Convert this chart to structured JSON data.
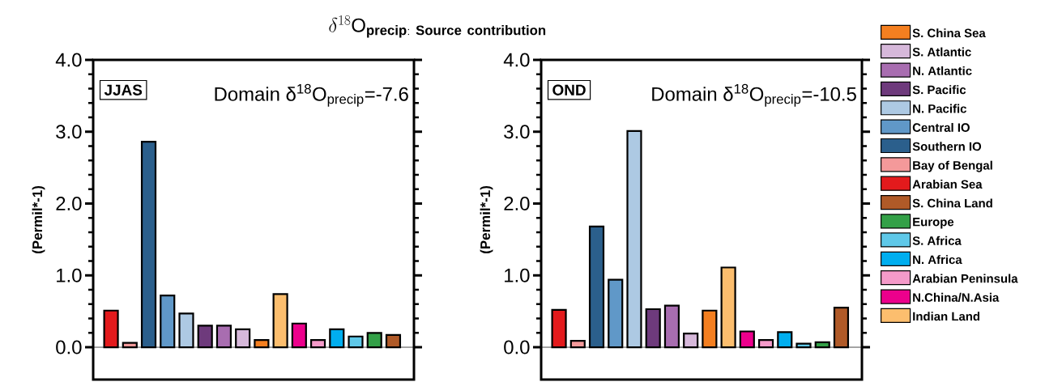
{
  "chart_data": [
    {
      "type": "bar",
      "title": "\\delta^{18}\\mathrm{O}_{\\mathbf{precip:\\ Source\\ contribution}}",
      "ylabel": "(Permil*-1)",
      "categories": [
        null,
        null,
        null,
        null,
        null,
        null,
        null,
        null,
        null,
        null,
        null,
        null,
        null,
        null,
        null,
        null
      ],
      "series": [
        {
          "color": "#e31a1c",
          "values": [
            0.51,
            null,
            null,
            null,
            null,
            null,
            null,
            null,
            null,
            null,
            null,
            null,
            null,
            null,
            null,
            null
          ]
        },
        {
          "color": "#f4999a",
          "values": [
            null,
            0.06,
            null,
            null,
            null,
            null,
            null,
            null,
            null,
            null,
            null,
            null,
            null,
            null,
            null,
            null
          ]
        },
        {
          "color": "#2b5f8c",
          "values": [
            null,
            null,
            2.86,
            null,
            null,
            null,
            null,
            null,
            null,
            null,
            null,
            null,
            null,
            null,
            null,
            null
          ]
        },
        {
          "color": "#6098c8",
          "values": [
            null,
            null,
            null,
            0.72,
            null,
            null,
            null,
            null,
            null,
            null,
            null,
            null,
            null,
            null,
            null,
            null
          ]
        },
        {
          "color": "#adc9e3",
          "values": [
            null,
            null,
            null,
            null,
            0.47,
            null,
            null,
            null,
            null,
            null,
            null,
            null,
            null,
            null,
            null,
            null
          ]
        },
        {
          "color": "#6e3a7c",
          "values": [
            null,
            null,
            null,
            null,
            null,
            0.3,
            null,
            null,
            null,
            null,
            null,
            null,
            null,
            null,
            null,
            null
          ]
        },
        {
          "color": "#a86db0",
          "values": [
            null,
            null,
            null,
            null,
            null,
            null,
            0.3,
            null,
            null,
            null,
            null,
            null,
            null,
            null,
            null,
            null
          ]
        },
        {
          "color": "#d6b8da",
          "values": [
            null,
            null,
            null,
            null,
            null,
            null,
            null,
            0.25,
            null,
            null,
            null,
            null,
            null,
            null,
            null,
            null
          ]
        },
        {
          "color": "#f47f20",
          "values": [
            null,
            null,
            null,
            null,
            null,
            null,
            null,
            null,
            0.1,
            null,
            null,
            null,
            null,
            null,
            null,
            null
          ]
        },
        {
          "color": "#fcbe6e",
          "values": [
            null,
            null,
            null,
            null,
            null,
            null,
            null,
            null,
            null,
            0.74,
            null,
            null,
            null,
            null,
            null,
            null
          ]
        },
        {
          "color": "#ec008c",
          "values": [
            null,
            null,
            null,
            null,
            null,
            null,
            null,
            null,
            null,
            null,
            0.33,
            null,
            null,
            null,
            null,
            null
          ]
        },
        {
          "color": "#f49ac9",
          "values": [
            null,
            null,
            null,
            null,
            null,
            null,
            null,
            null,
            null,
            null,
            null,
            0.1,
            null,
            null,
            null,
            null
          ]
        },
        {
          "color": "#00aeef",
          "values": [
            null,
            null,
            null,
            null,
            null,
            null,
            null,
            null,
            null,
            null,
            null,
            null,
            0.25,
            null,
            null,
            null
          ]
        },
        {
          "color": "#5fc8e8",
          "values": [
            null,
            null,
            null,
            null,
            null,
            null,
            null,
            null,
            null,
            null,
            null,
            null,
            null,
            0.15,
            null,
            null
          ]
        },
        {
          "color": "#33a047",
          "values": [
            null,
            null,
            null,
            null,
            null,
            null,
            null,
            null,
            null,
            null,
            null,
            null,
            null,
            null,
            0.2,
            null
          ]
        },
        {
          "color": "#b05a28",
          "values": [
            null,
            null,
            null,
            null,
            null,
            null,
            null,
            null,
            null,
            null,
            null,
            null,
            null,
            null,
            null,
            0.17
          ]
        }
      ],
      "ylim": [
        -0.45,
        4.0
      ],
      "yticks": [
        {
          "value": 0,
          "label": "0.0"
        },
        {
          "value": 1,
          "label": "1.0"
        },
        {
          "value": 2,
          "label": "2.0"
        },
        {
          "value": 3,
          "label": "3.0"
        },
        {
          "value": 4,
          "label": "4.0"
        }
      ],
      "tick_labels": "y",
      "ref_lines": [
        {
          "axis": "y",
          "value": 0
        }
      ],
      "annotations": [
        "JJAS",
        "Domain δ$^{18}$O$_{precip}$=-7.6"
      ]
    },
    {
      "type": "bar",
      "ylabel": "(Permil*-1)",
      "categories": [
        null,
        null,
        null,
        null,
        null,
        null,
        null,
        null,
        null,
        null,
        null,
        null,
        null,
        null,
        null,
        null
      ],
      "series": [
        {
          "name": "Arabian Sea",
          "color": "#e31a1c",
          "values": [
            0.52,
            null,
            null,
            null,
            null,
            null,
            null,
            null,
            null,
            null,
            null,
            null,
            null,
            null,
            null,
            null
          ]
        },
        {
          "name": "Bay of Bengal",
          "color": "#f4999a",
          "values": [
            null,
            0.09,
            null,
            null,
            null,
            null,
            null,
            null,
            null,
            null,
            null,
            null,
            null,
            null,
            null,
            null
          ]
        },
        {
          "name": "Southern IO",
          "color": "#2b5f8c",
          "values": [
            null,
            null,
            1.68,
            null,
            null,
            null,
            null,
            null,
            null,
            null,
            null,
            null,
            null,
            null,
            null,
            null
          ]
        },
        {
          "name": "Central IO",
          "color": "#6098c8",
          "values": [
            null,
            null,
            null,
            0.94,
            null,
            null,
            null,
            null,
            null,
            null,
            null,
            null,
            null,
            null,
            null,
            null
          ]
        },
        {
          "name": "N. Pacific",
          "color": "#adc9e3",
          "values": [
            null,
            null,
            null,
            null,
            3.01,
            null,
            null,
            null,
            null,
            null,
            null,
            null,
            null,
            null,
            null,
            null
          ]
        },
        {
          "name": "S. Pacific",
          "color": "#6e3a7c",
          "values": [
            null,
            null,
            null,
            null,
            null,
            0.53,
            null,
            null,
            null,
            null,
            null,
            null,
            null,
            null,
            null,
            null
          ]
        },
        {
          "name": "N. Atlantic",
          "color": "#a86db0",
          "values": [
            null,
            null,
            null,
            null,
            null,
            null,
            0.58,
            null,
            null,
            null,
            null,
            null,
            null,
            null,
            null,
            null
          ]
        },
        {
          "name": "S. Atlantic",
          "color": "#d6b8da",
          "values": [
            null,
            null,
            null,
            null,
            null,
            null,
            null,
            0.19,
            null,
            null,
            null,
            null,
            null,
            null,
            null,
            null
          ]
        },
        {
          "name": "S. China Sea",
          "color": "#f47f20",
          "values": [
            null,
            null,
            null,
            null,
            null,
            null,
            null,
            null,
            0.51,
            null,
            null,
            null,
            null,
            null,
            null,
            null
          ]
        },
        {
          "name": "Indian Land",
          "color": "#fcbe6e",
          "values": [
            null,
            null,
            null,
            null,
            null,
            null,
            null,
            null,
            null,
            1.11,
            null,
            null,
            null,
            null,
            null,
            null
          ]
        },
        {
          "name": "N.China/N.Asia",
          "color": "#ec008c",
          "values": [
            null,
            null,
            null,
            null,
            null,
            null,
            null,
            null,
            null,
            null,
            0.22,
            null,
            null,
            null,
            null,
            null
          ]
        },
        {
          "name": "Arabian Peninsula",
          "color": "#f49ac9",
          "values": [
            null,
            null,
            null,
            null,
            null,
            null,
            null,
            null,
            null,
            null,
            null,
            0.1,
            null,
            null,
            null,
            null
          ]
        },
        {
          "name": "N. Africa",
          "color": "#00aeef",
          "values": [
            null,
            null,
            null,
            null,
            null,
            null,
            null,
            null,
            null,
            null,
            null,
            null,
            0.21,
            null,
            null,
            null
          ]
        },
        {
          "name": "S. Africa",
          "color": "#5fc8e8",
          "values": [
            null,
            null,
            null,
            null,
            null,
            null,
            null,
            null,
            null,
            null,
            null,
            null,
            null,
            0.05,
            null,
            null
          ]
        },
        {
          "name": "Europe",
          "color": "#33a047",
          "values": [
            null,
            null,
            null,
            null,
            null,
            null,
            null,
            null,
            null,
            null,
            null,
            null,
            null,
            null,
            0.07,
            null
          ]
        },
        {
          "name": "S. China Land",
          "color": "#b05a28",
          "values": [
            null,
            null,
            null,
            null,
            null,
            null,
            null,
            null,
            null,
            null,
            null,
            null,
            null,
            null,
            null,
            0.55
          ]
        }
      ],
      "ylim": [
        -0.45,
        4.0
      ],
      "yticks": [
        {
          "value": 0,
          "label": "0.0"
        },
        {
          "value": 1,
          "label": "1.0"
        },
        {
          "value": 2,
          "label": "2.0"
        },
        {
          "value": 3,
          "label": "3.0"
        },
        {
          "value": 4,
          "label": "4.0"
        }
      ],
      "tick_labels": "y",
      "ref_lines": [
        {
          "axis": "y",
          "value": 0
        }
      ],
      "legend": "right",
      "annotations": [
        "OND",
        "Domain δ$^{18}$O$_{precip}$=-10.5"
      ]
    }
  ]
}
